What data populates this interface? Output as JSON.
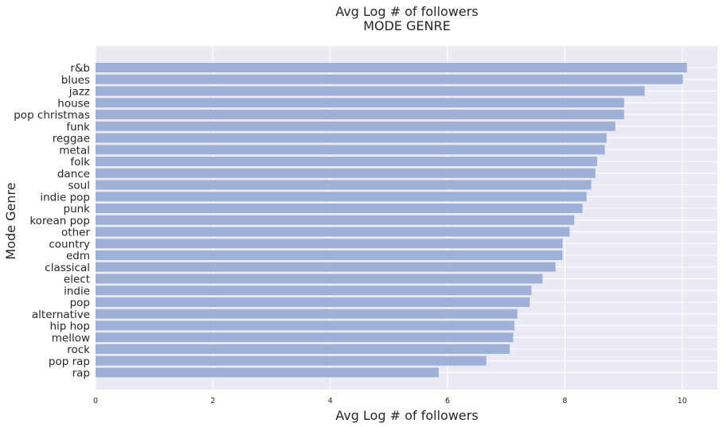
{
  "chart_data": {
    "type": "bar",
    "orientation": "horizontal",
    "title": "Avg Log # of followers",
    "subtitle": "MODE GENRE",
    "xlabel": "Avg Log # of followers",
    "ylabel": "Mode Genre",
    "xlim": [
      0,
      10.6
    ],
    "xticks": [
      "0",
      "2",
      "4",
      "6",
      "8",
      "10"
    ],
    "grid": true,
    "bar_color": "#9fb0d6",
    "background_color": "#eaeaf2",
    "categories": [
      "r&b",
      "blues",
      "jazz",
      "house",
      "pop christmas",
      "funk",
      "reggae",
      "metal",
      "folk",
      "dance",
      "soul",
      "indie pop",
      "punk",
      "korean pop",
      "other",
      "country",
      "edm",
      "classical",
      "elect",
      "indie",
      "pop",
      "alternative",
      "hip hop",
      "mellow",
      "rock",
      "pop rap",
      "rap"
    ],
    "values": [
      10.08,
      10.01,
      9.36,
      9.01,
      9.01,
      8.86,
      8.71,
      8.68,
      8.55,
      8.52,
      8.45,
      8.37,
      8.3,
      8.16,
      8.08,
      7.96,
      7.96,
      7.84,
      7.62,
      7.43,
      7.4,
      7.19,
      7.14,
      7.12,
      7.06,
      6.66,
      5.85
    ]
  }
}
